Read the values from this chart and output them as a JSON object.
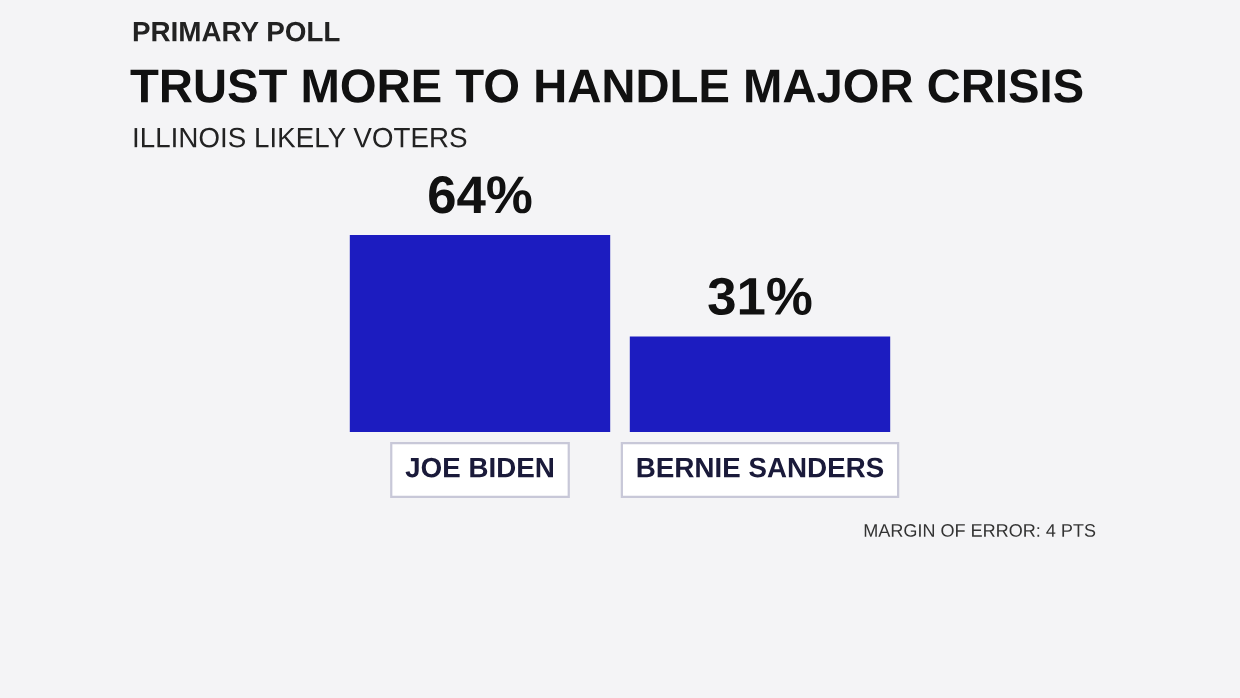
{
  "chart_data": {
    "type": "bar",
    "title": "TRUST MORE TO HANDLE MAJOR CRISIS",
    "subtitle": "ILLINOIS LIKELY VOTERS",
    "annotations": [
      "PRIMARY POLL",
      "MARGIN OF ERROR: 4 PTS"
    ],
    "categories": [
      "JOE BIDEN",
      "BERNIE SANDERS"
    ],
    "values": [
      64,
      31
    ],
    "value_labels": [
      "64%",
      "31%"
    ],
    "color": "#1c1cc0",
    "grid": false,
    "legend": false
  }
}
